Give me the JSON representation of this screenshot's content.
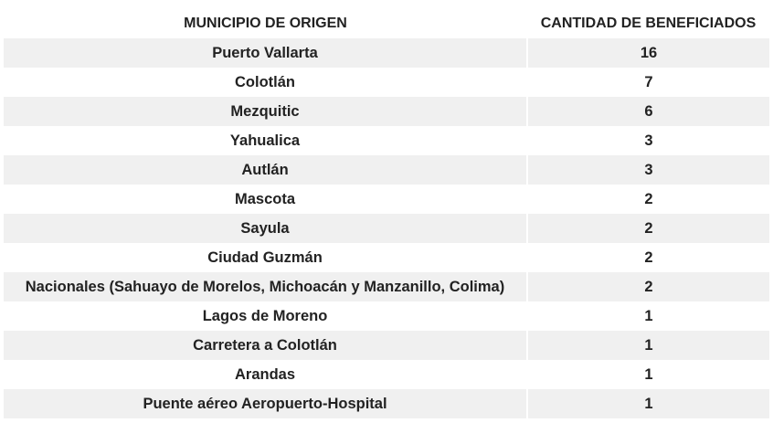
{
  "table": {
    "headers": {
      "municipio": "MUNICIPIO DE ORIGEN",
      "cantidad": "CANTIDAD DE BENEFICIADOS"
    },
    "rows": [
      {
        "municipio": "Puerto Vallarta",
        "cantidad": "16"
      },
      {
        "municipio": "Colotlán",
        "cantidad": "7"
      },
      {
        "municipio": "Mezquitic",
        "cantidad": "6"
      },
      {
        "municipio": "Yahualica",
        "cantidad": "3"
      },
      {
        "municipio": "Autlán",
        "cantidad": "3"
      },
      {
        "municipio": "Mascota",
        "cantidad": "2"
      },
      {
        "municipio": "Sayula",
        "cantidad": "2"
      },
      {
        "municipio": "Ciudad Guzmán",
        "cantidad": "2"
      },
      {
        "municipio": "Nacionales (Sahuayo de Morelos, Michoacán y Manzanillo, Colima)",
        "cantidad": "2"
      },
      {
        "municipio": "Lagos de Moreno",
        "cantidad": "1"
      },
      {
        "municipio": "Carretera a Colotlán",
        "cantidad": "1"
      },
      {
        "municipio": "Arandas",
        "cantidad": "1"
      },
      {
        "municipio": "Puente aéreo Aeropuerto-Hospital",
        "cantidad": "1"
      }
    ]
  },
  "colors": {
    "stripe": "#f0f0f0",
    "text": "#222222",
    "background": "#ffffff"
  }
}
